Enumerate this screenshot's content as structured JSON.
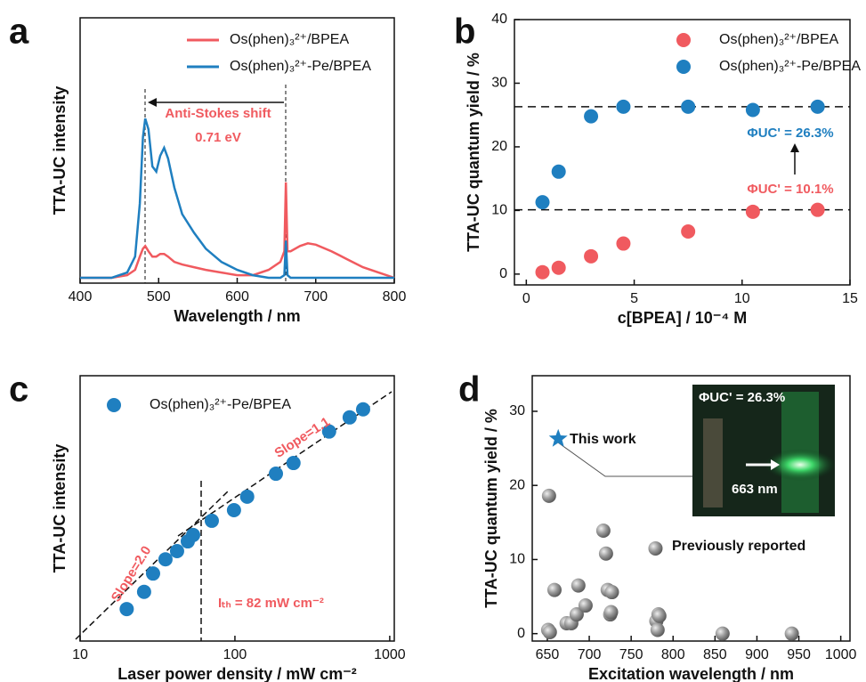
{
  "chart_data": [
    {
      "type": "line",
      "panel_label": "a",
      "xlabel": "Wavelength / nm",
      "ylabel": "TTA-UC intensity",
      "xlim": [
        400,
        800
      ],
      "xticks": [
        400,
        500,
        600,
        700,
        800
      ],
      "ylim": [
        0,
        1
      ],
      "legend": true,
      "x": [
        400,
        440,
        460,
        470,
        476,
        480,
        483,
        487,
        492,
        497,
        502,
        507,
        512,
        520,
        530,
        545,
        560,
        580,
        600,
        620,
        640,
        655,
        660,
        662,
        664,
        668,
        680,
        690,
        700,
        720,
        740,
        760,
        780,
        800
      ],
      "series": [
        {
          "name": "Os(phen)₃²⁺/BPEA",
          "color": "#f05a5f",
          "values": [
            0.02,
            0.02,
            0.03,
            0.05,
            0.1,
            0.13,
            0.14,
            0.12,
            0.1,
            0.1,
            0.11,
            0.11,
            0.1,
            0.08,
            0.07,
            0.06,
            0.05,
            0.04,
            0.03,
            0.03,
            0.05,
            0.08,
            0.12,
            0.38,
            0.12,
            0.12,
            0.14,
            0.15,
            0.145,
            0.12,
            0.09,
            0.06,
            0.04,
            0.02
          ]
        },
        {
          "name": "Os(phen)₃²⁺-Pe/BPEA",
          "color": "#1f7fc0",
          "values": [
            0.02,
            0.02,
            0.04,
            0.1,
            0.3,
            0.55,
            0.62,
            0.58,
            0.44,
            0.42,
            0.48,
            0.51,
            0.47,
            0.36,
            0.26,
            0.19,
            0.13,
            0.08,
            0.05,
            0.03,
            0.02,
            0.02,
            0.03,
            0.16,
            0.03,
            0.02,
            0.02,
            0.02,
            0.02,
            0.02,
            0.02,
            0.02,
            0.02,
            0.02
          ]
        }
      ],
      "annotations": [
        "Anti-Stokes shift",
        "0.71 eV"
      ]
    },
    {
      "type": "scatter",
      "panel_label": "b",
      "xlabel": "c[BPEA] / 10⁻⁴ M",
      "ylabel": "TTA-UC quantum yield / %",
      "xlim": [
        -0.55,
        15
      ],
      "xticks": [
        0,
        5,
        10,
        15
      ],
      "ylim": [
        -1.7,
        40
      ],
      "yticks": [
        0,
        10,
        20,
        30,
        40
      ],
      "legend": true,
      "hlines": [
        26.3,
        10.1
      ],
      "series": [
        {
          "name": "Os(phen)₃²⁺/BPEA",
          "color": "#f05a5f",
          "x": [
            0.75,
            1.5,
            3,
            4.5,
            7.5,
            10.5,
            13.5
          ],
          "values": [
            0.3,
            1.0,
            2.8,
            4.8,
            6.7,
            9.8,
            10.1
          ]
        },
        {
          "name": "Os(phen)₃²⁺-Pe/BPEA",
          "color": "#1f7fc0",
          "x": [
            0.75,
            1.5,
            3,
            4.5,
            7.5,
            10.5,
            13.5
          ],
          "values": [
            11.3,
            16.1,
            24.8,
            26.3,
            26.3,
            25.8,
            26.3
          ]
        }
      ],
      "annotations": [
        "ΦUC' = 26.3%",
        "ΦUC' = 10.1%"
      ]
    },
    {
      "type": "scatter",
      "panel_label": "c",
      "xlabel": "Laser power density / mW cm⁻²",
      "ylabel": "TTA-UC intensity",
      "xlim": [
        10,
        1070
      ],
      "xticks": [
        10,
        100,
        1000
      ],
      "xlog": true,
      "ylim": [
        1,
        1000
      ],
      "ylog": true,
      "legend": true,
      "series": [
        {
          "name": "Os(phen)₃²⁺-Pe/BPEA",
          "color": "#1f7fc0",
          "x": [
            20,
            25.9,
            29.6,
            35.6,
            42.3,
            49.6,
            53.7,
            70.9,
            98.6,
            120,
            184,
            239,
            406,
            551,
            673
          ],
          "values": [
            2.3,
            3.6,
            5.8,
            8.4,
            10.4,
            13.4,
            15.8,
            22.9,
            30.2,
            42.9,
            78,
            103,
            234,
            338,
            417
          ]
        }
      ],
      "annotations": [
        "Slope=2.0",
        "Slope=1.1",
        "Iₜₕ = 82 mW cm⁻²"
      ]
    },
    {
      "type": "scatter",
      "panel_label": "d",
      "xlabel": "Excitation wavelength / nm",
      "ylabel": "TTA-UC quantum yield / %",
      "xlim": [
        632,
        1011
      ],
      "xticks": [
        650,
        700,
        750,
        800,
        850,
        900,
        950,
        1000
      ],
      "ylim": [
        -1,
        34.8
      ],
      "yticks": [
        0,
        10,
        20,
        30
      ],
      "legend": false,
      "series": [
        {
          "name": "This work",
          "color": "#1f7fc0",
          "marker": "star",
          "x": [
            663
          ],
          "values": [
            26.3
          ]
        },
        {
          "name": "Previously reported",
          "color": "#8a8a8a",
          "marker": "sphere",
          "x": [
            651,
            653,
            652,
            658.5,
            673,
            678.6,
            685,
            687,
            695.6,
            716.8,
            720,
            722,
            725,
            727,
            726,
            780,
            781.5,
            782.6,
            783.6,
            779,
            859,
            941.6
          ],
          "values": [
            0.5,
            0.2,
            18.6,
            5.9,
            1.4,
            1.4,
            2.6,
            6.5,
            3.8,
            13.9,
            10.8,
            5.9,
            2.6,
            5.6,
            2.9,
            1.7,
            0.5,
            2.6,
            2.4,
            11.5,
            0,
            0
          ]
        }
      ],
      "annotations": [
        "ΦUC' = 26.3%",
        "663 nm"
      ]
    }
  ]
}
